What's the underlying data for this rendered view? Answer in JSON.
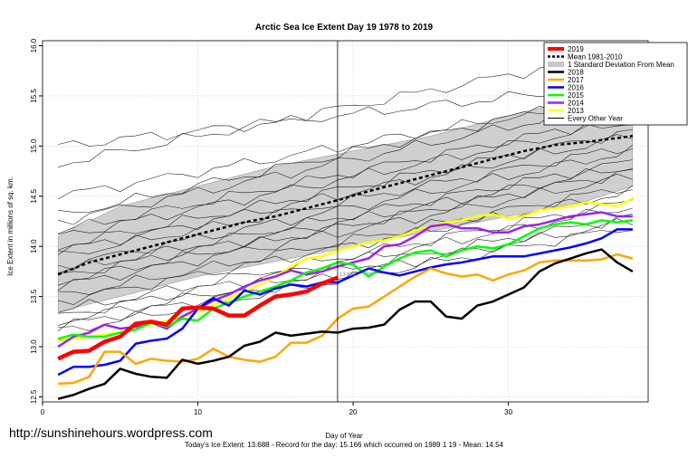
{
  "chart_data": {
    "type": "line",
    "title": "Arctic Sea Ice Extent Day 19 1978 to 2019",
    "xlabel": "Day of Year",
    "ylabel": "Ice Extent in millions of sq. km.",
    "xlim": [
      0,
      39
    ],
    "ylim": [
      12.45,
      16.05
    ],
    "x_ticks": [
      0,
      10,
      20,
      30
    ],
    "y_ticks": [
      "12.5",
      "13.0",
      "13.5",
      "14.0",
      "14.5",
      "15.0",
      "15.5",
      "16.0"
    ],
    "marker_day": 19,
    "marker_label": "13.688",
    "grid": true,
    "legend_position": "top-right",
    "legend": [
      {
        "name": "2019",
        "color": "#ff0000"
      },
      {
        "name": "Mean 1981-2010",
        "color": "#000000"
      },
      {
        "name": "1 Standard Deviation From Mean",
        "color": "#c8c8c8"
      },
      {
        "name": "2018",
        "color": "#000000"
      },
      {
        "name": "2017",
        "color": "#ffa500"
      },
      {
        "name": "2016",
        "color": "#0000ff"
      },
      {
        "name": "2015",
        "color": "#00ff00"
      },
      {
        "name": "2014",
        "color": "#a020f0"
      },
      {
        "name": "2013",
        "color": "#ffff00"
      },
      {
        "name": "Every Other Year",
        "color": "#000000"
      }
    ],
    "band": {
      "x": [
        1,
        5,
        10,
        15,
        20,
        25,
        30,
        35,
        38
      ],
      "lower": [
        13.35,
        13.5,
        13.7,
        13.85,
        14.0,
        14.15,
        14.3,
        14.45,
        14.6
      ],
      "upper": [
        14.1,
        14.4,
        14.6,
        14.8,
        14.95,
        15.1,
        15.3,
        15.5,
        15.6
      ]
    },
    "series": [
      {
        "name": "2019",
        "color": "#ff0000",
        "width": 4.5,
        "x": [
          1,
          2,
          3,
          4,
          5,
          6,
          7,
          8,
          9,
          10,
          11,
          12,
          13,
          14,
          15,
          16,
          17,
          18,
          19
        ],
        "values": [
          12.88,
          12.95,
          12.96,
          13.05,
          13.1,
          13.23,
          13.25,
          13.22,
          13.38,
          13.39,
          13.38,
          13.31,
          13.31,
          13.41,
          13.5,
          13.52,
          13.55,
          13.63,
          13.688
        ]
      },
      {
        "name": "Mean 1981-2010",
        "color": "#000000",
        "width": 2.5,
        "dash": "4,3",
        "x": [
          1,
          3,
          5,
          7,
          9,
          11,
          13,
          15,
          17,
          19,
          21,
          23,
          25,
          27,
          29,
          31,
          33,
          35,
          37,
          38
        ],
        "values": [
          13.72,
          13.84,
          13.92,
          14.0,
          14.08,
          14.16,
          14.24,
          14.3,
          14.38,
          14.46,
          14.55,
          14.63,
          14.71,
          14.79,
          14.87,
          14.95,
          15.01,
          15.04,
          15.08,
          15.1
        ]
      },
      {
        "name": "2018",
        "color": "#000000",
        "width": 2.5,
        "x": [
          1,
          2,
          3,
          4,
          5,
          6,
          7,
          8,
          9,
          10,
          11,
          12,
          13,
          14,
          15,
          16,
          17,
          18,
          19,
          20,
          21,
          22,
          23,
          24,
          25,
          26,
          27,
          28,
          29,
          30,
          31,
          32,
          33,
          34,
          35,
          36,
          37,
          38
        ],
        "values": [
          12.48,
          12.52,
          12.58,
          12.63,
          12.78,
          12.73,
          12.7,
          12.69,
          12.87,
          12.83,
          12.86,
          12.9,
          13.01,
          13.05,
          13.14,
          13.11,
          13.13,
          13.15,
          13.14,
          13.18,
          13.19,
          13.22,
          13.37,
          13.45,
          13.45,
          13.3,
          13.28,
          13.41,
          13.45,
          13.52,
          13.59,
          13.75,
          13.83,
          13.88,
          13.93,
          13.97,
          13.84,
          13.75
        ]
      },
      {
        "name": "2017",
        "color": "#ffa500",
        "width": 2.5,
        "x": [
          1,
          2,
          3,
          4,
          5,
          6,
          7,
          8,
          9,
          10,
          11,
          12,
          13,
          14,
          15,
          16,
          17,
          18,
          19,
          20,
          21,
          22,
          23,
          24,
          25,
          26,
          27,
          28,
          29,
          30,
          31,
          32,
          33,
          34,
          35,
          36,
          37,
          38
        ],
        "values": [
          12.63,
          12.64,
          12.7,
          12.95,
          12.95,
          12.83,
          12.88,
          12.86,
          12.85,
          12.88,
          12.98,
          12.9,
          12.87,
          12.85,
          12.9,
          13.04,
          13.04,
          13.11,
          13.28,
          13.38,
          13.4,
          13.5,
          13.6,
          13.7,
          13.78,
          13.73,
          13.7,
          13.72,
          13.66,
          13.72,
          13.76,
          13.84,
          13.86,
          13.86,
          13.86,
          13.87,
          13.92,
          13.88
        ]
      },
      {
        "name": "2016",
        "color": "#0000ff",
        "width": 2.5,
        "x": [
          1,
          2,
          3,
          4,
          5,
          6,
          7,
          8,
          9,
          10,
          11,
          12,
          13,
          14,
          15,
          16,
          17,
          18,
          19,
          20,
          21,
          22,
          23,
          24,
          25,
          26,
          27,
          28,
          29,
          30,
          31,
          32,
          33,
          34,
          35,
          36,
          37,
          38
        ],
        "values": [
          12.72,
          12.8,
          12.8,
          12.82,
          12.86,
          13.03,
          13.06,
          13.08,
          13.18,
          13.38,
          13.48,
          13.41,
          13.56,
          13.52,
          13.58,
          13.62,
          13.6,
          13.64,
          13.64,
          13.71,
          13.78,
          13.74,
          13.71,
          13.75,
          13.79,
          13.82,
          13.84,
          13.87,
          13.9,
          13.9,
          13.9,
          13.93,
          13.96,
          13.99,
          14.03,
          14.08,
          14.17,
          14.17
        ]
      },
      {
        "name": "2015",
        "color": "#00ff00",
        "width": 2.5,
        "x": [
          1,
          2,
          3,
          4,
          5,
          6,
          7,
          8,
          9,
          10,
          11,
          12,
          13,
          14,
          15,
          16,
          17,
          18,
          19,
          20,
          21,
          22,
          23,
          24,
          25,
          26,
          27,
          28,
          29,
          30,
          31,
          32,
          33,
          34,
          35,
          36,
          37,
          38
        ],
        "values": [
          13.08,
          13.12,
          13.1,
          13.1,
          13.14,
          13.17,
          13.24,
          13.2,
          13.28,
          13.26,
          13.38,
          13.44,
          13.5,
          13.55,
          13.6,
          13.66,
          13.74,
          13.78,
          13.84,
          13.82,
          13.7,
          13.8,
          13.88,
          13.94,
          13.96,
          13.9,
          13.96,
          14.0,
          13.98,
          14.02,
          14.1,
          14.18,
          14.22,
          14.24,
          14.22,
          14.26,
          14.24,
          14.26
        ]
      },
      {
        "name": "2014",
        "color": "#a020f0",
        "width": 2.5,
        "x": [
          1,
          2,
          3,
          4,
          5,
          6,
          7,
          8,
          9,
          10,
          11,
          12,
          13,
          14,
          15,
          16,
          17,
          18,
          19,
          20,
          21,
          22,
          23,
          24,
          25,
          26,
          27,
          28,
          29,
          30,
          31,
          32,
          33,
          34,
          35,
          36,
          37,
          38
        ],
        "values": [
          13.0,
          13.1,
          13.14,
          13.22,
          13.18,
          13.2,
          13.24,
          13.18,
          13.3,
          13.38,
          13.46,
          13.52,
          13.6,
          13.66,
          13.7,
          13.76,
          13.72,
          13.75,
          13.8,
          13.84,
          13.88,
          14.0,
          14.02,
          14.1,
          14.2,
          14.22,
          14.18,
          14.18,
          14.14,
          14.14,
          14.2,
          14.22,
          14.26,
          14.3,
          14.32,
          14.34,
          14.3,
          14.3
        ]
      },
      {
        "name": "2013",
        "color": "#ffff00",
        "width": 2.5,
        "x": [
          1,
          2,
          3,
          4,
          5,
          6,
          7,
          8,
          9,
          10,
          11,
          12,
          13,
          14,
          15,
          16,
          17,
          18,
          19,
          20,
          21,
          22,
          23,
          24,
          25,
          26,
          27,
          28,
          29,
          30,
          31,
          32,
          33,
          34,
          35,
          36,
          37,
          38
        ],
        "values": [
          13.06,
          13.08,
          13.1,
          13.12,
          13.14,
          13.2,
          13.22,
          13.26,
          13.3,
          13.34,
          13.42,
          13.48,
          13.55,
          13.62,
          13.7,
          13.8,
          13.88,
          13.9,
          13.96,
          14.0,
          14.04,
          14.06,
          14.1,
          14.16,
          14.2,
          14.24,
          14.26,
          14.3,
          14.32,
          14.28,
          14.3,
          14.36,
          14.38,
          14.4,
          14.44,
          14.42,
          14.4,
          14.48
        ]
      }
    ],
    "every_other_year": [
      {
        "x": [
          1,
          38
        ],
        "values": [
          15.0,
          15.62
        ]
      },
      {
        "x": [
          1,
          38
        ],
        "values": [
          14.82,
          15.95
        ]
      },
      {
        "x": [
          1,
          38
        ],
        "values": [
          14.5,
          15.5
        ]
      },
      {
        "x": [
          1,
          38
        ],
        "values": [
          14.3,
          15.55
        ]
      },
      {
        "x": [
          1,
          38
        ],
        "values": [
          14.25,
          15.45
        ]
      },
      {
        "x": [
          1,
          38
        ],
        "values": [
          14.15,
          15.3
        ]
      },
      {
        "x": [
          1,
          38
        ],
        "values": [
          14.1,
          15.25
        ]
      },
      {
        "x": [
          1,
          38
        ],
        "values": [
          14.0,
          15.15
        ]
      },
      {
        "x": [
          1,
          38
        ],
        "values": [
          13.95,
          15.1
        ]
      },
      {
        "x": [
          1,
          38
        ],
        "values": [
          13.9,
          15.0
        ]
      },
      {
        "x": [
          1,
          38
        ],
        "values": [
          13.8,
          14.95
        ]
      },
      {
        "x": [
          1,
          38
        ],
        "values": [
          13.75,
          14.85
        ]
      },
      {
        "x": [
          1,
          38
        ],
        "values": [
          13.7,
          14.8
        ]
      },
      {
        "x": [
          1,
          38
        ],
        "values": [
          13.65,
          14.75
        ]
      },
      {
        "x": [
          1,
          38
        ],
        "values": [
          13.6,
          14.7
        ]
      },
      {
        "x": [
          1,
          38
        ],
        "values": [
          13.5,
          14.6
        ]
      },
      {
        "x": [
          1,
          38
        ],
        "values": [
          13.45,
          14.55
        ]
      },
      {
        "x": [
          1,
          38
        ],
        "values": [
          13.35,
          14.45
        ]
      },
      {
        "x": [
          1,
          38
        ],
        "values": [
          13.3,
          14.4
        ]
      },
      {
        "x": [
          1,
          38
        ],
        "values": [
          13.25,
          14.3
        ]
      },
      {
        "x": [
          1,
          38
        ],
        "values": [
          13.2,
          14.25
        ]
      },
      {
        "x": [
          1,
          38
        ],
        "values": [
          13.15,
          14.2
        ]
      }
    ]
  },
  "footer": {
    "url": "http://sunshinehours.wordpress.com",
    "summary": "Today's Ice Extent: 13.688  - Record for the day: 15.166 which occurred on 1989 1 19  - Mean: 14.54"
  }
}
